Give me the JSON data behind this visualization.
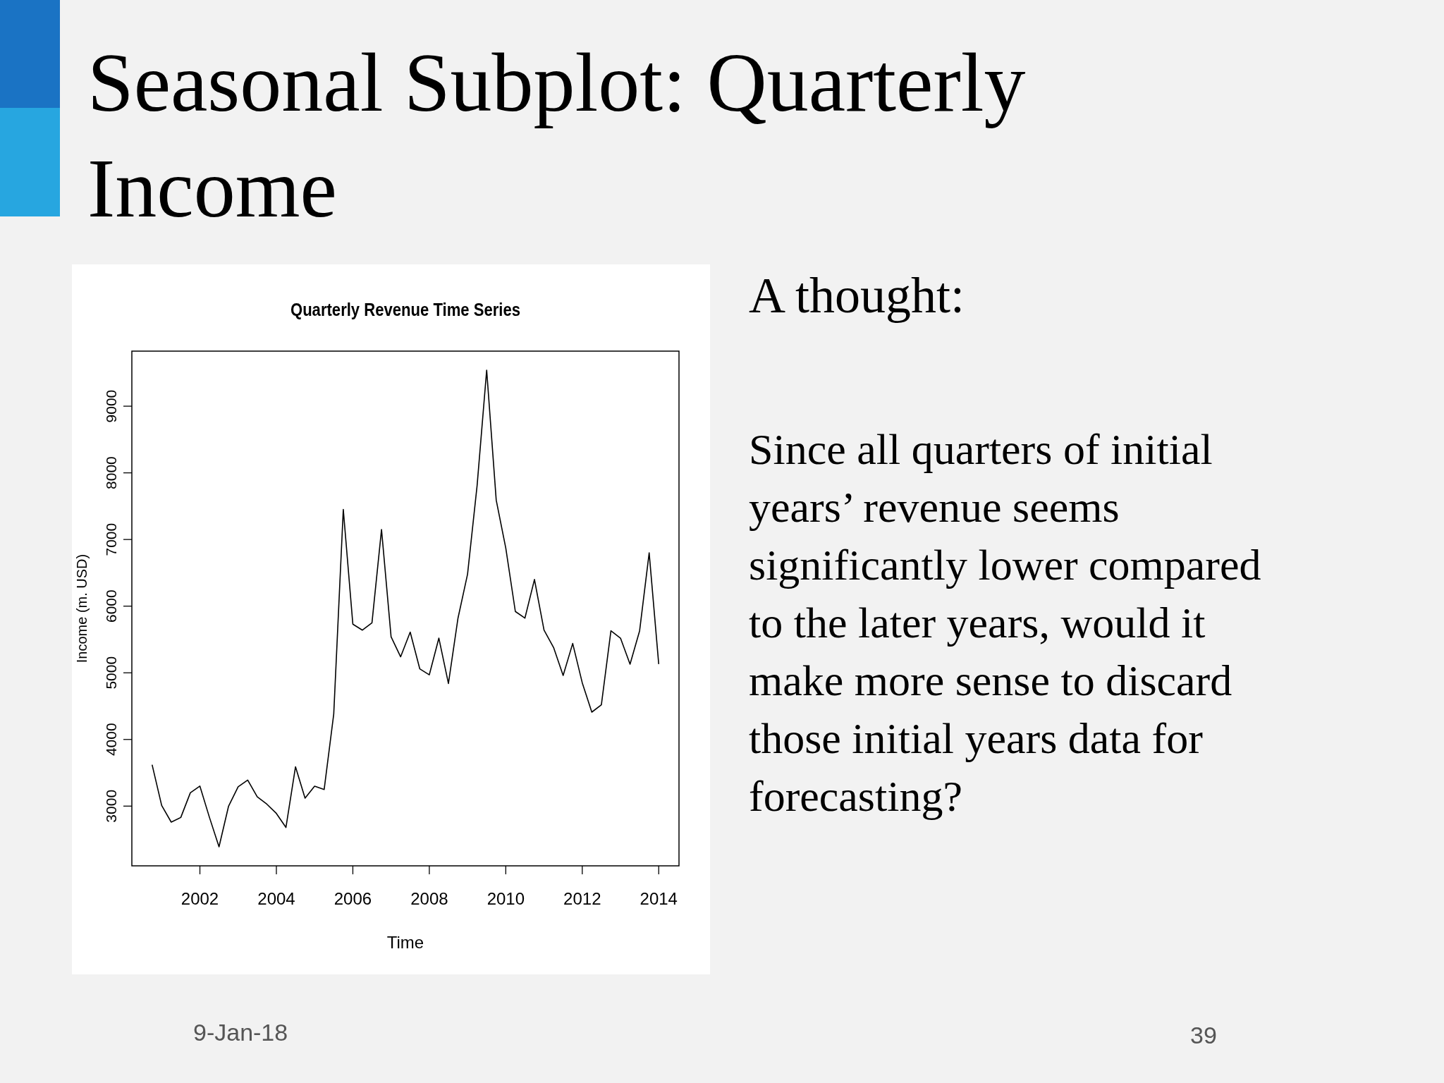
{
  "chart_data": {
    "type": "line",
    "title": "Quarterly Revenue Time Series",
    "xlabel": "Time",
    "ylabel": "Income (m. USD)",
    "x": [
      2000.75,
      2001,
      2001.25,
      2001.5,
      2001.75,
      2002,
      2002.25,
      2002.5,
      2002.75,
      2003,
      2003.25,
      2003.5,
      2003.75,
      2004,
      2004.25,
      2004.5,
      2004.75,
      2005,
      2005.25,
      2005.5,
      2005.75,
      2006,
      2006.25,
      2006.5,
      2006.75,
      2007,
      2007.25,
      2007.5,
      2007.75,
      2008,
      2008.25,
      2008.5,
      2008.75,
      2009,
      2009.25,
      2009.5,
      2009.75,
      2010,
      2010.25,
      2010.5,
      2010.75,
      2011,
      2011.25,
      2011.5,
      2011.75,
      2012,
      2012.25,
      2012.5,
      2012.75,
      2013,
      2013.25,
      2013.5,
      2013.75,
      2014
    ],
    "series": [
      {
        "color": "#000000",
        "values": [
          3620,
          3010,
          2760,
          2830,
          3200,
          3300,
          2830,
          2390,
          3000,
          3290,
          3390,
          3140,
          3030,
          2890,
          2680,
          3590,
          3120,
          3300,
          3250,
          4380,
          7450,
          5730,
          5640,
          5750,
          7150,
          5540,
          5240,
          5610,
          5060,
          4970,
          5520,
          4840,
          5820,
          6480,
          7810,
          9540,
          7590,
          6870,
          5920,
          5820,
          6400,
          5640,
          5380,
          4960,
          5440,
          4850,
          4410,
          4520,
          5630,
          5520,
          5130,
          5630,
          6800,
          5130
        ]
      }
    ],
    "xlim": [
      2000.22,
      2014.53
    ],
    "xticks": [
      2002,
      2004,
      2006,
      2008,
      2010,
      2012,
      2014
    ],
    "ylim": [
      2104,
      9826
    ],
    "yticks": [
      3000,
      4000,
      5000,
      6000,
      7000,
      8000,
      9000
    ],
    "grid": false,
    "marker": "none",
    "line_style": "solid",
    "annotations": [
      "Seasonal Subplot: Quarterly Income",
      "A thought:",
      "Since all quarters of initial years’ revenue seems significantly lower compared to the later years, would it make more sense to discard those initial years data for forecasting?",
      "9-Jan-18",
      "39"
    ]
  }
}
